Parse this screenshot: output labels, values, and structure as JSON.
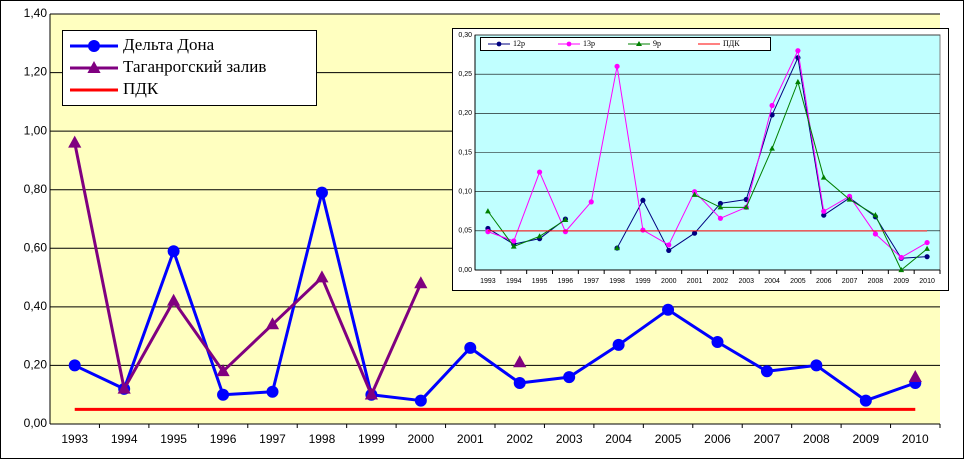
{
  "chart_data": [
    {
      "type": "line",
      "legend": "top-left",
      "grid": true,
      "background": "#ffffc0",
      "categories": [
        "1993",
        "1994",
        "1995",
        "1996",
        "1997",
        "1998",
        "1999",
        "2000",
        "2001",
        "2002",
        "2003",
        "2004",
        "2005",
        "2006",
        "2007",
        "2008",
        "2009",
        "2010"
      ],
      "ylim": [
        0,
        1.4
      ],
      "yticks": [
        {
          "value": 0,
          "label": "0,00"
        },
        {
          "value": 0.2,
          "label": "0,20"
        },
        {
          "value": 0.4,
          "label": "0,40"
        },
        {
          "value": 0.6,
          "label": "0,60"
        },
        {
          "value": 0.8,
          "label": "0,80"
        },
        {
          "value": 1.0,
          "label": "1,00"
        },
        {
          "value": 1.2,
          "label": "1,20"
        },
        {
          "value": 1.4,
          "label": "1,40"
        }
      ],
      "series": [
        {
          "name": "Дельта Дона",
          "color": "#0000ff",
          "marker": "circle",
          "values": [
            0.2,
            0.12,
            0.59,
            0.1,
            0.11,
            0.79,
            0.1,
            0.08,
            0.26,
            0.14,
            0.16,
            0.27,
            0.39,
            0.28,
            0.18,
            0.2,
            0.08,
            0.14
          ]
        },
        {
          "name": "Таганрогский залив",
          "color": "#800080",
          "marker": "triangle",
          "values": [
            0.96,
            0.12,
            0.42,
            0.18,
            0.34,
            0.5,
            0.1,
            0.48,
            null,
            0.21,
            null,
            null,
            null,
            null,
            null,
            null,
            null,
            0.16
          ]
        },
        {
          "name": "ПДК",
          "color": "#ff0000",
          "marker": "none",
          "values": [
            0.05,
            0.05,
            0.05,
            0.05,
            0.05,
            0.05,
            0.05,
            0.05,
            0.05,
            0.05,
            0.05,
            0.05,
            0.05,
            0.05,
            0.05,
            0.05,
            0.05,
            0.05
          ]
        }
      ]
    },
    {
      "type": "line",
      "legend": "top",
      "grid": true,
      "background": "#c0ffff",
      "categories": [
        "1993",
        "1994",
        "1995",
        "1996",
        "1997",
        "1998",
        "1999",
        "2000",
        "2001",
        "2002",
        "2003",
        "2004",
        "2005",
        "2006",
        "2007",
        "2008",
        "2009",
        "2010"
      ],
      "ylim": [
        0,
        0.3
      ],
      "yticks": [
        {
          "value": 0,
          "label": "0,00"
        },
        {
          "value": 0.05,
          "label": "0,05"
        },
        {
          "value": 0.1,
          "label": "0,10"
        },
        {
          "value": 0.15,
          "label": "0,15"
        },
        {
          "value": 0.2,
          "label": "0,20"
        },
        {
          "value": 0.25,
          "label": "0,25"
        },
        {
          "value": 0.3,
          "label": "0,30"
        }
      ],
      "series": [
        {
          "name": "12р",
          "color": "#000080",
          "marker": "circle",
          "values": [
            0.053,
            0.033,
            0.04,
            0.065,
            null,
            0.028,
            0.089,
            0.025,
            0.047,
            0.085,
            0.09,
            0.198,
            0.271,
            0.07,
            0.092,
            0.068,
            0.015,
            0.017
          ]
        },
        {
          "name": "13р",
          "color": "#ff00ff",
          "marker": "circle",
          "values": [
            0.049,
            0.037,
            0.125,
            0.049,
            0.087,
            0.26,
            0.051,
            0.032,
            0.1,
            0.066,
            0.08,
            0.21,
            0.28,
            0.075,
            0.094,
            0.046,
            0.016,
            0.035
          ]
        },
        {
          "name": "9р",
          "color": "#008000",
          "marker": "triangle",
          "values": [
            0.075,
            0.03,
            0.043,
            0.064,
            null,
            0.028,
            null,
            null,
            0.096,
            0.08,
            0.08,
            0.155,
            0.24,
            0.118,
            0.09,
            0.07,
            0.0,
            0.027
          ]
        },
        {
          "name": "ПДК",
          "color": "#ff0000",
          "marker": "none",
          "values": [
            0.05,
            0.05,
            0.05,
            0.05,
            0.05,
            0.05,
            0.05,
            0.05,
            0.05,
            0.05,
            0.05,
            0.05,
            0.05,
            0.05,
            0.05,
            0.05,
            0.05,
            0.05
          ]
        }
      ]
    }
  ]
}
